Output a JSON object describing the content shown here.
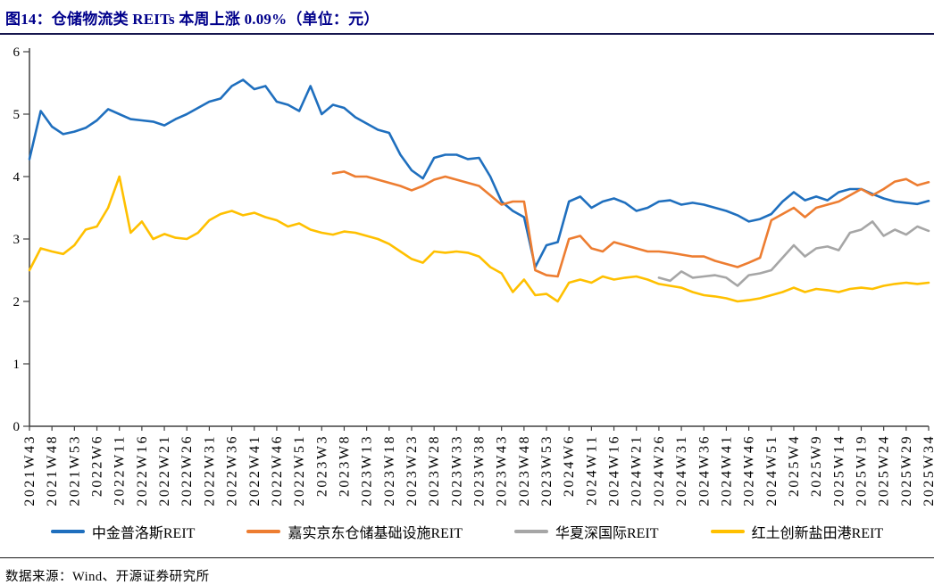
{
  "title": {
    "text": "图14：仓储物流类 REITs 本周上涨 0.09%（单位：元）",
    "color": "#00008B"
  },
  "footer": {
    "source": "数据来源：Wind、开源证券研究所"
  },
  "colors": {
    "blue": "#1F6FBE",
    "orange": "#ED7D31",
    "gray": "#A6A6A6",
    "yellow": "#FFC000",
    "axis": "#404040",
    "title_navy": "#00008B"
  },
  "chart_data": {
    "type": "line",
    "title": "仓储物流类 REITs 本周上涨 0.09%（单位：元）",
    "unit": "元",
    "xlabel": "",
    "ylabel": "",
    "ylim": [
      0,
      6
    ],
    "y_ticks": [
      0,
      1,
      2,
      3,
      4,
      5,
      6
    ],
    "grid": false,
    "legend_position": "bottom",
    "x_tick_labels": [
      "2021W43",
      "2021W48",
      "2021W53",
      "2022W6",
      "2022W11",
      "2022W16",
      "2022W21",
      "2022W26",
      "2022W31",
      "2022W36",
      "2022W41",
      "2022W46",
      "2022W51",
      "2023W3",
      "2023W8",
      "2023W13",
      "2023W18",
      "2023W23",
      "2023W28",
      "2023W33",
      "2023W38",
      "2023W43",
      "2023W48",
      "2023W53",
      "2024W6",
      "2024W11",
      "2024W16",
      "2024W21",
      "2024W26",
      "2024W31",
      "2024W36",
      "2024W41",
      "2024W46",
      "2024W51",
      "2025W4",
      "2025W9",
      "2025W14",
      "2025W19",
      "2025W24",
      "2025W29",
      "2025W34"
    ],
    "samples_per_tick_interval": 2,
    "note": "values sampled every half tick interval (≈2.5 weeks); null = series not yet listed",
    "series": [
      {
        "name": "中金普洛斯REIT",
        "color": "#1F6FBE",
        "values": [
          4.28,
          5.05,
          4.8,
          4.68,
          4.72,
          4.78,
          4.9,
          5.08,
          5.0,
          4.92,
          4.9,
          4.88,
          4.82,
          4.92,
          5.0,
          5.1,
          5.2,
          5.25,
          5.45,
          5.55,
          5.4,
          5.45,
          5.2,
          5.15,
          5.05,
          5.45,
          5.0,
          5.15,
          5.1,
          4.95,
          4.85,
          4.75,
          4.7,
          4.35,
          4.1,
          3.97,
          4.3,
          4.35,
          4.35,
          4.28,
          4.3,
          4.0,
          3.6,
          3.45,
          3.35,
          2.55,
          2.9,
          2.95,
          3.6,
          3.68,
          3.5,
          3.6,
          3.65,
          3.58,
          3.45,
          3.5,
          3.6,
          3.62,
          3.55,
          3.58,
          3.55,
          3.5,
          3.45,
          3.38,
          3.28,
          3.32,
          3.4,
          3.6,
          3.75,
          3.62,
          3.68,
          3.62,
          3.75,
          3.8,
          3.8,
          3.72,
          3.65,
          3.6,
          3.58,
          3.56,
          3.61
        ]
      },
      {
        "name": "嘉实京东仓储基础设施REIT",
        "color": "#ED7D31",
        "values": [
          null,
          null,
          null,
          null,
          null,
          null,
          null,
          null,
          null,
          null,
          null,
          null,
          null,
          null,
          null,
          null,
          null,
          null,
          null,
          null,
          null,
          null,
          null,
          null,
          null,
          null,
          null,
          4.05,
          4.08,
          4.0,
          4.0,
          3.95,
          3.9,
          3.85,
          3.78,
          3.85,
          3.95,
          4.0,
          3.95,
          3.9,
          3.85,
          3.7,
          3.55,
          3.6,
          3.6,
          2.5,
          2.42,
          2.4,
          3.0,
          3.05,
          2.85,
          2.8,
          2.95,
          2.9,
          2.85,
          2.8,
          2.8,
          2.78,
          2.75,
          2.72,
          2.72,
          2.65,
          2.6,
          2.55,
          2.62,
          2.7,
          3.3,
          3.4,
          3.5,
          3.35,
          3.5,
          3.55,
          3.6,
          3.7,
          3.8,
          3.7,
          3.8,
          3.92,
          3.96,
          3.86,
          3.91
        ]
      },
      {
        "name": "华夏深国际REIT",
        "color": "#A6A6A6",
        "values": [
          null,
          null,
          null,
          null,
          null,
          null,
          null,
          null,
          null,
          null,
          null,
          null,
          null,
          null,
          null,
          null,
          null,
          null,
          null,
          null,
          null,
          null,
          null,
          null,
          null,
          null,
          null,
          null,
          null,
          null,
          null,
          null,
          null,
          null,
          null,
          null,
          null,
          null,
          null,
          null,
          null,
          null,
          null,
          null,
          null,
          null,
          null,
          null,
          null,
          null,
          null,
          null,
          null,
          null,
          null,
          null,
          2.38,
          2.33,
          2.48,
          2.38,
          2.4,
          2.42,
          2.38,
          2.25,
          2.42,
          2.45,
          2.5,
          2.7,
          2.9,
          2.72,
          2.85,
          2.88,
          2.82,
          3.1,
          3.15,
          3.28,
          3.05,
          3.15,
          3.07,
          3.2,
          3.13
        ]
      },
      {
        "name": "红土创新盐田港REIT",
        "color": "#FFC000",
        "values": [
          2.5,
          2.85,
          2.8,
          2.76,
          2.9,
          3.15,
          3.2,
          3.5,
          4.0,
          3.1,
          3.28,
          3.0,
          3.08,
          3.02,
          3.0,
          3.1,
          3.3,
          3.4,
          3.45,
          3.38,
          3.42,
          3.35,
          3.3,
          3.2,
          3.25,
          3.15,
          3.1,
          3.07,
          3.12,
          3.1,
          3.05,
          3.0,
          2.92,
          2.8,
          2.68,
          2.62,
          2.8,
          2.78,
          2.8,
          2.78,
          2.72,
          2.55,
          2.45,
          2.15,
          2.35,
          2.1,
          2.12,
          2.0,
          2.3,
          2.35,
          2.3,
          2.4,
          2.35,
          2.38,
          2.4,
          2.35,
          2.28,
          2.25,
          2.22,
          2.15,
          2.1,
          2.08,
          2.05,
          2.0,
          2.02,
          2.05,
          2.1,
          2.15,
          2.22,
          2.15,
          2.2,
          2.18,
          2.15,
          2.2,
          2.22,
          2.2,
          2.25,
          2.28,
          2.3,
          2.28,
          2.3
        ]
      }
    ]
  }
}
